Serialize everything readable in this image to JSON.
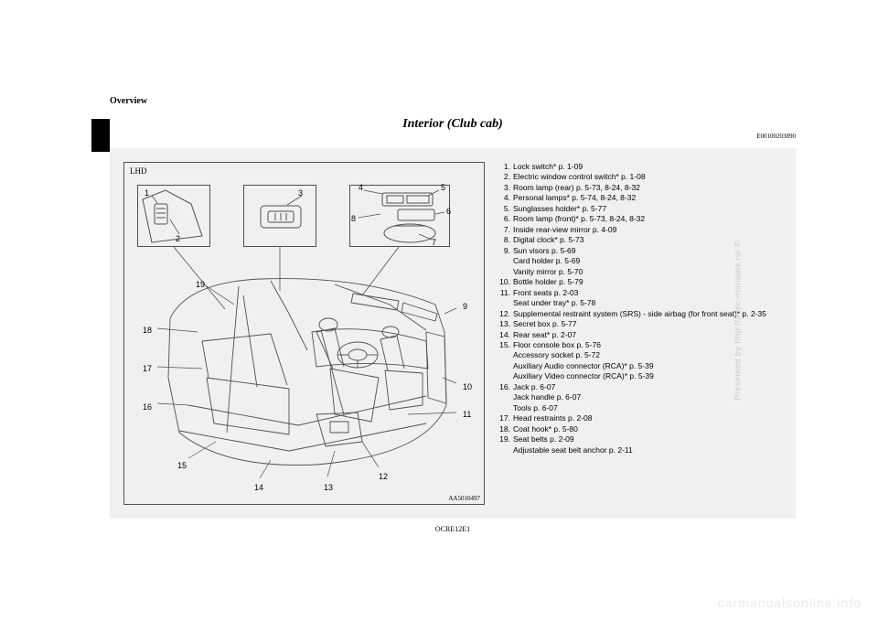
{
  "header": {
    "section": "Overview"
  },
  "title": "Interior (Club cab)",
  "doc_code": "E00100203890",
  "diagram": {
    "lhd": "LHD",
    "id": "AA5010497",
    "callouts": {
      "c1": "1",
      "c2": "2",
      "c3": "3",
      "c4": "4",
      "c5": "5",
      "c6": "6",
      "c7": "7",
      "c8": "8",
      "c9": "9",
      "c10": "10",
      "c11": "11",
      "c12": "12",
      "c13": "13",
      "c14": "14",
      "c15": "15",
      "c16": "16",
      "c17": "17",
      "c18": "18",
      "c19": "19"
    }
  },
  "list": [
    {
      "n": "1.",
      "t": "Lock switch* p. 1-09"
    },
    {
      "n": "2.",
      "t": "Electric window control switch* p. 1-08"
    },
    {
      "n": "3.",
      "t": "Room lamp (rear) p. 5-73, 8-24, 8-32"
    },
    {
      "n": "4.",
      "t": "Personal lamps* p. 5-74, 8-24, 8-32"
    },
    {
      "n": "5.",
      "t": "Sunglasses holder* p. 5-77"
    },
    {
      "n": "6.",
      "t": "Room lamp (front)* p. 5-73, 8-24, 8-32"
    },
    {
      "n": "7.",
      "t": "Inside rear-view mirror p. 4-09"
    },
    {
      "n": "8.",
      "t": "Digital clock* p. 5-73"
    },
    {
      "n": "9.",
      "t": "Sun visors p. 5-69",
      "subs": [
        "Card holder p. 5-69",
        "Vanity mirror p. 5-70"
      ]
    },
    {
      "n": "10.",
      "t": "Bottle holder p. 5-79"
    },
    {
      "n": "11.",
      "t": "Front seats p. 2-03",
      "subs": [
        "Seat under tray* p. 5-78"
      ]
    },
    {
      "n": "12.",
      "t": "Supplemental restraint system (SRS) - side airbag (for front seat)* p. 2-35"
    },
    {
      "n": "13.",
      "t": "Secret box p. 5-77"
    },
    {
      "n": "14.",
      "t": "Rear seat* p. 2-07"
    },
    {
      "n": "15.",
      "t": "Floor console box p. 5-76",
      "subs": [
        "Accessory socket  p. 5-72",
        "Auxiliary Audio connector (RCA)* p. 5-39",
        "Auxiliary Video connector (RCA)* p. 5-39"
      ]
    },
    {
      "n": "16.",
      "t": "Jack p. 6-07",
      "subs": [
        "Jack handle p. 6-07",
        "Tools p. 6-07"
      ]
    },
    {
      "n": "17.",
      "t": "Head restraints p. 2-08"
    },
    {
      "n": "18.",
      "t": "Coat hook* p. 5-80"
    },
    {
      "n": "19.",
      "t": "Seat belts p. 2-09",
      "subs": [
        "Adjustable seat belt anchor p. 2-11"
      ]
    }
  ],
  "footer_code": "OCRE12E1",
  "watermarks": {
    "side": "Presented by http://mmc-manuals.ru/ ©",
    "bottom": "carmanualsonline.info"
  },
  "colors": {
    "panel_bg": "#f0f0ee",
    "stroke": "#504f4e",
    "watermark": "#c8c8c8"
  }
}
